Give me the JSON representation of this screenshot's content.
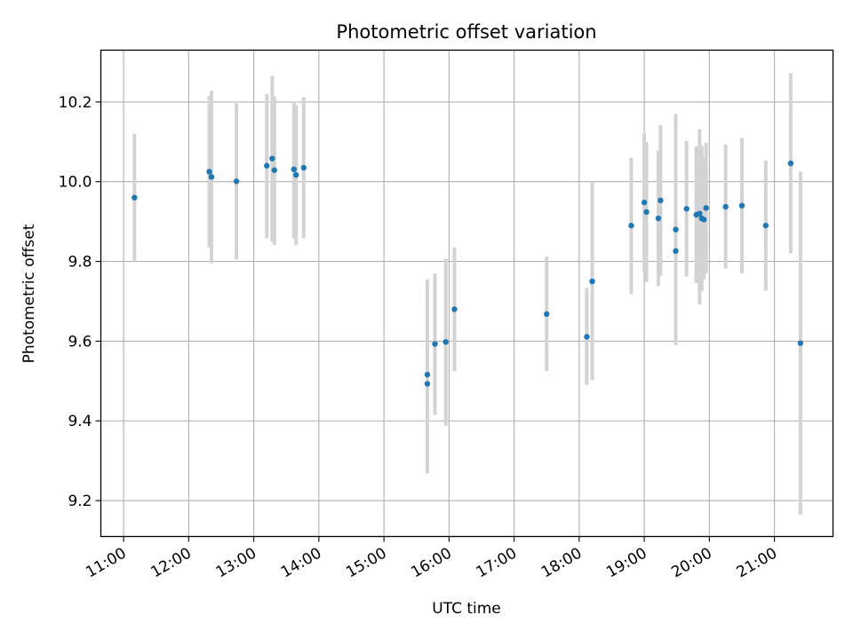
{
  "chart_data": {
    "type": "scatter",
    "title": "Photometric offset variation",
    "xlabel": "UTC time",
    "ylabel": "Photometric offset",
    "x_unit": "hours (UTC)",
    "xlim": [
      10.65,
      21.9
    ],
    "ylim": [
      9.11,
      10.33
    ],
    "grid": true,
    "x_ticks": [
      "11:00",
      "12:00",
      "13:00",
      "14:00",
      "15:00",
      "16:00",
      "17:00",
      "18:00",
      "19:00",
      "20:00",
      "21:00"
    ],
    "y_ticks": [
      "9.2",
      "9.4",
      "9.6",
      "9.8",
      "10.0",
      "10.2"
    ],
    "colors": {
      "point": "#1f77b4",
      "errorbar": "#d3d3d3",
      "grid": "#b0b0b0"
    },
    "points": [
      {
        "x": "11:10",
        "y": 9.96,
        "ylo": 9.8,
        "yhi": 10.12
      },
      {
        "x": "12:19",
        "y": 10.025,
        "ylo": 9.835,
        "yhi": 10.215
      },
      {
        "x": "12:21",
        "y": 10.012,
        "ylo": 9.795,
        "yhi": 10.228
      },
      {
        "x": "12:44",
        "y": 10.001,
        "ylo": 9.805,
        "yhi": 10.197
      },
      {
        "x": "13:12",
        "y": 10.04,
        "ylo": 9.858,
        "yhi": 10.22
      },
      {
        "x": "13:17",
        "y": 10.058,
        "ylo": 9.85,
        "yhi": 10.266
      },
      {
        "x": "13:19",
        "y": 10.029,
        "ylo": 9.842,
        "yhi": 10.214
      },
      {
        "x": "13:37",
        "y": 10.031,
        "ylo": 9.858,
        "yhi": 10.201
      },
      {
        "x": "13:39",
        "y": 10.017,
        "ylo": 9.842,
        "yhi": 10.192
      },
      {
        "x": "13:46",
        "y": 10.035,
        "ylo": 9.858,
        "yhi": 10.212
      },
      {
        "x": "15:40",
        "y": 9.516,
        "ylo": 9.268,
        "yhi": 9.755
      },
      {
        "x": "15:40",
        "y": 9.493,
        "ylo": 9.29,
        "yhi": 9.7
      },
      {
        "x": "15:47",
        "y": 9.593,
        "ylo": 9.415,
        "yhi": 9.77
      },
      {
        "x": "15:57",
        "y": 9.598,
        "ylo": 9.388,
        "yhi": 9.807
      },
      {
        "x": "16:05",
        "y": 9.68,
        "ylo": 9.525,
        "yhi": 9.835
      },
      {
        "x": "17:30",
        "y": 9.668,
        "ylo": 9.525,
        "yhi": 9.812
      },
      {
        "x": "18:07",
        "y": 9.611,
        "ylo": 9.49,
        "yhi": 9.733
      },
      {
        "x": "18:12",
        "y": 9.75,
        "ylo": 9.502,
        "yhi": 9.998
      },
      {
        "x": "18:48",
        "y": 9.89,
        "ylo": 9.718,
        "yhi": 10.06
      },
      {
        "x": "19:00",
        "y": 9.948,
        "ylo": 9.775,
        "yhi": 10.121
      },
      {
        "x": "19:02",
        "y": 9.924,
        "ylo": 9.748,
        "yhi": 10.1
      },
      {
        "x": "19:13",
        "y": 9.908,
        "ylo": 9.738,
        "yhi": 10.078
      },
      {
        "x": "19:15",
        "y": 9.953,
        "ylo": 9.764,
        "yhi": 10.142
      },
      {
        "x": "19:29",
        "y": 9.826,
        "ylo": 9.6,
        "yhi": 10.052
      },
      {
        "x": "19:29",
        "y": 9.88,
        "ylo": 9.59,
        "yhi": 10.17
      },
      {
        "x": "19:39",
        "y": 9.932,
        "ylo": 9.762,
        "yhi": 10.102
      },
      {
        "x": "19:48",
        "y": 9.917,
        "ylo": 9.745,
        "yhi": 10.089
      },
      {
        "x": "19:51",
        "y": 9.92,
        "ylo": 9.692,
        "yhi": 10.132
      },
      {
        "x": "19:53",
        "y": 9.908,
        "ylo": 9.725,
        "yhi": 10.09
      },
      {
        "x": "19:55",
        "y": 9.905,
        "ylo": 9.755,
        "yhi": 10.061
      },
      {
        "x": "19:57",
        "y": 9.934,
        "ylo": 9.77,
        "yhi": 10.098
      },
      {
        "x": "20:15",
        "y": 9.937,
        "ylo": 9.782,
        "yhi": 10.093
      },
      {
        "x": "20:30",
        "y": 9.94,
        "ylo": 9.77,
        "yhi": 10.11
      },
      {
        "x": "20:52",
        "y": 9.89,
        "ylo": 9.727,
        "yhi": 10.053
      },
      {
        "x": "21:15",
        "y": 10.046,
        "ylo": 9.82,
        "yhi": 10.272
      },
      {
        "x": "21:24",
        "y": 9.595,
        "ylo": 9.165,
        "yhi": 10.025
      }
    ]
  }
}
